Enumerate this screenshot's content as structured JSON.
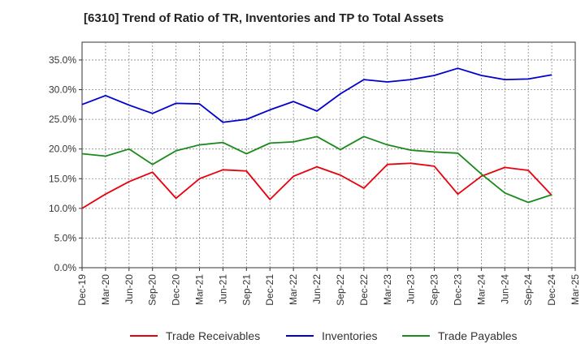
{
  "chart_data": {
    "type": "line",
    "title": "[6310]  Trend of Ratio of TR, Inventories and TP to Total Assets",
    "xlabel": "",
    "ylabel": "",
    "x_tick_labels": [
      "Dec-19",
      "Mar-20",
      "Jun-20",
      "Sep-20",
      "Dec-20",
      "Mar-21",
      "Jun-21",
      "Sep-21",
      "Dec-21",
      "Mar-22",
      "Jun-22",
      "Sep-22",
      "Dec-22",
      "Mar-23",
      "Jun-23",
      "Sep-23",
      "Dec-23",
      "Mar-24",
      "Jun-24",
      "Sep-24",
      "Dec-24",
      "Mar-25"
    ],
    "y_tick_labels": [
      "0.0%",
      "5.0%",
      "10.0%",
      "15.0%",
      "20.0%",
      "25.0%",
      "30.0%",
      "35.0%"
    ],
    "ylim": [
      0,
      38
    ],
    "y_ticks": [
      0,
      5,
      10,
      15,
      20,
      25,
      30,
      35
    ],
    "grid": true,
    "grid_style": "dashed",
    "legend_position": "bottom",
    "categories": [
      "Dec-19",
      "Mar-20",
      "Jun-20",
      "Sep-20",
      "Dec-20",
      "Mar-21",
      "Jun-21",
      "Sep-21",
      "Dec-21",
      "Mar-22",
      "Jun-22",
      "Sep-22",
      "Dec-22",
      "Mar-23",
      "Jun-23",
      "Sep-23",
      "Dec-23",
      "Mar-24",
      "Jun-24",
      "Sep-24",
      "Dec-24"
    ],
    "series": [
      {
        "name": "Trade Receivables",
        "color": "#e8000b",
        "values": [
          10.0,
          12.4,
          14.5,
          16.1,
          11.7,
          15.0,
          16.5,
          16.3,
          11.5,
          15.4,
          17.0,
          15.6,
          13.4,
          17.4,
          17.6,
          17.1,
          12.4,
          15.4,
          16.9,
          16.4,
          12.2
        ]
      },
      {
        "name": "Inventories",
        "color": "#0000d0",
        "values": [
          27.5,
          29.0,
          27.4,
          26.0,
          27.7,
          27.6,
          24.5,
          25.0,
          26.6,
          28.0,
          26.4,
          29.3,
          31.7,
          31.3,
          31.7,
          32.4,
          33.6,
          32.4,
          31.7,
          31.8,
          32.5
        ]
      },
      {
        "name": "Trade Payables",
        "color": "#1a8a1a",
        "values": [
          19.2,
          18.8,
          20.0,
          17.4,
          19.7,
          20.7,
          21.1,
          19.2,
          21.0,
          21.2,
          22.1,
          19.9,
          22.1,
          20.7,
          19.8,
          19.5,
          19.3,
          15.8,
          12.6,
          11.0,
          12.3
        ]
      }
    ]
  }
}
